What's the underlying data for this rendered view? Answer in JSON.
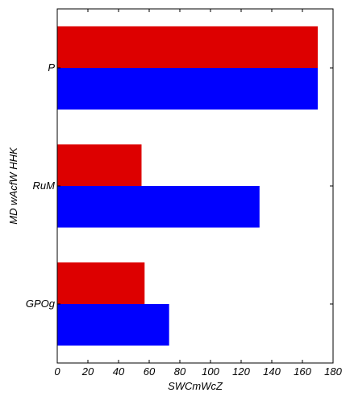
{
  "chart_data": {
    "type": "bar",
    "orientation": "horizontal",
    "categories": [
      "GPOg",
      "RuM",
      "P"
    ],
    "series": [
      {
        "values": [
          73,
          132,
          170
        ],
        "color": "#0000ff"
      },
      {
        "values": [
          57,
          55,
          170
        ],
        "color": "#dd0000"
      }
    ],
    "xlabel": "SWCmWcZ",
    "ylabel": "MD  wAcfW HHK",
    "xlim": [
      0,
      180
    ],
    "xticks": [
      0,
      20,
      40,
      60,
      80,
      100,
      120,
      140,
      160,
      180
    ],
    "grid": false,
    "legend": "none"
  }
}
